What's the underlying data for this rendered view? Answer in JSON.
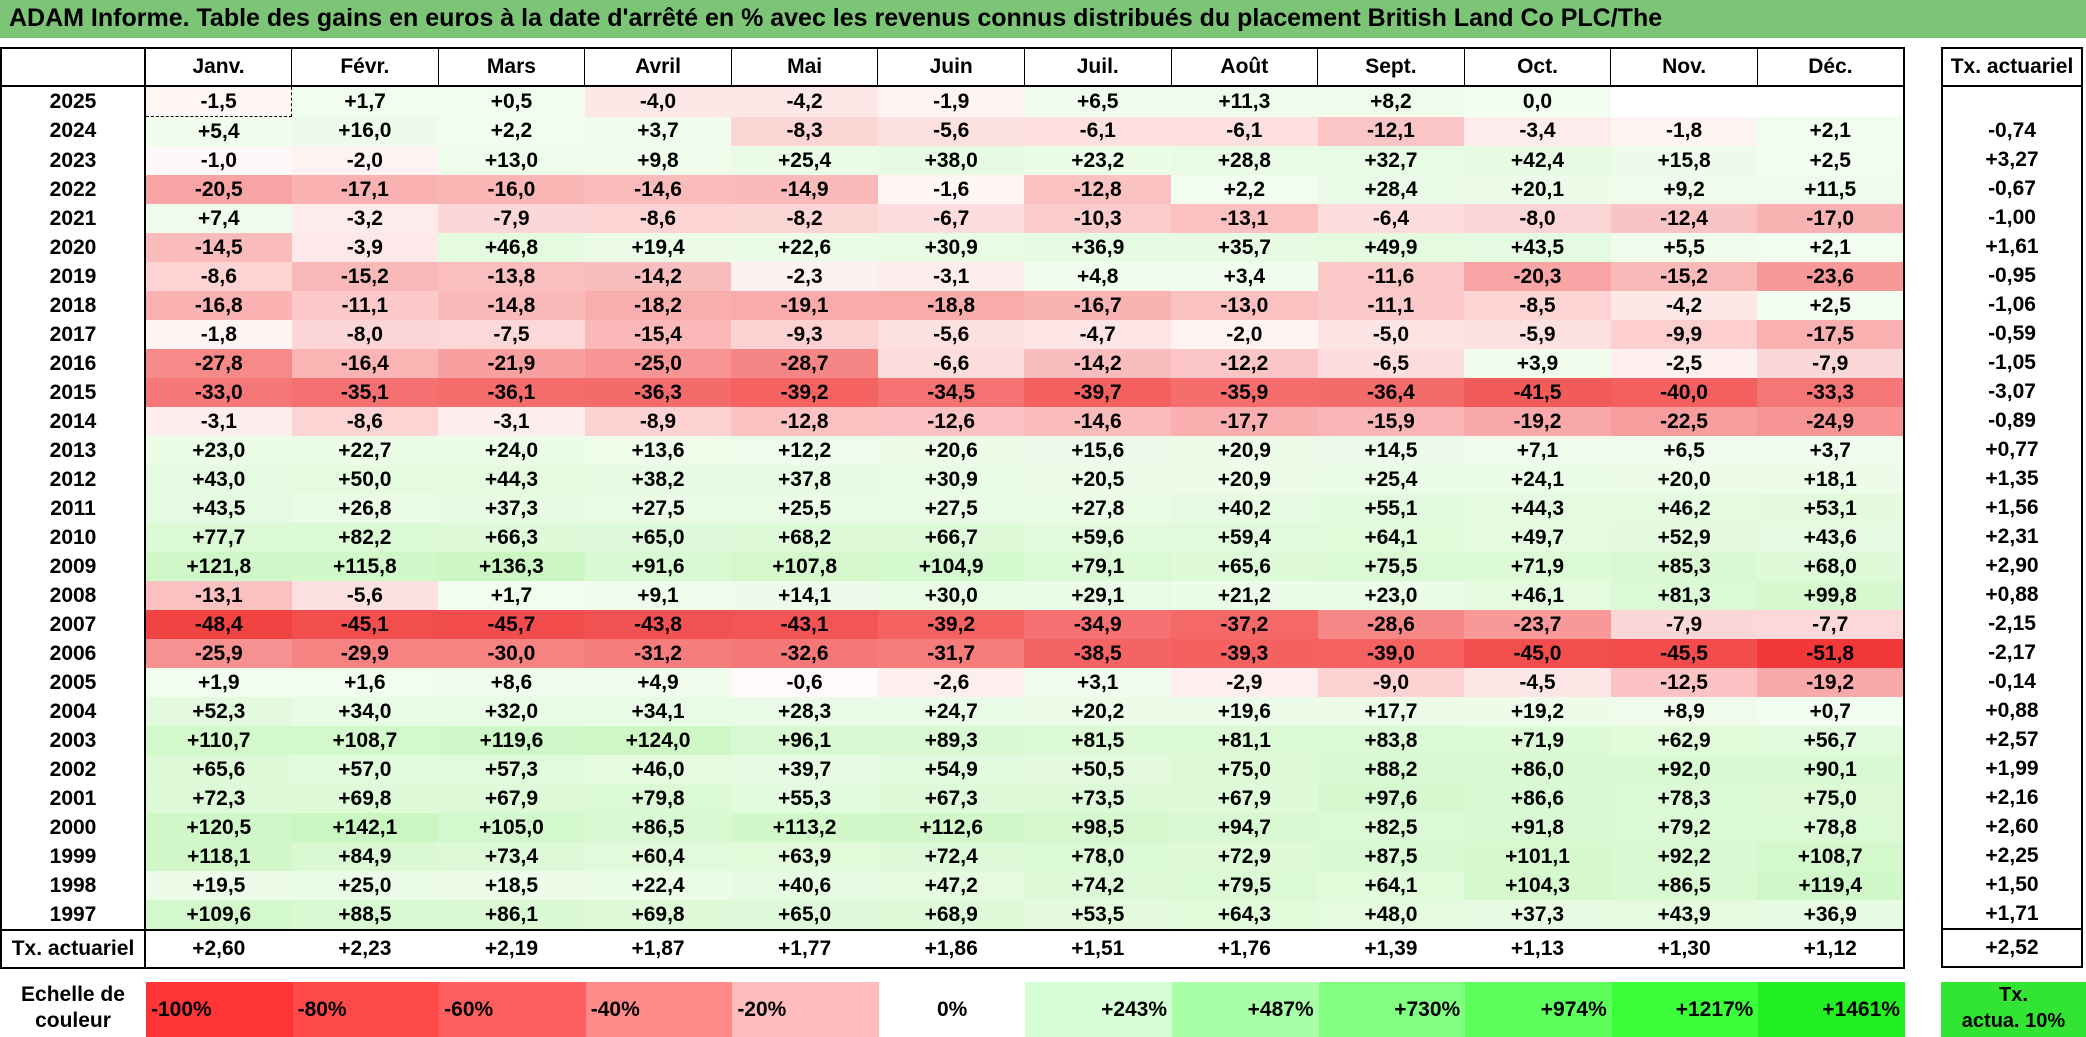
{
  "title": "ADAM Informe. Table des gains en euros à la date d'arrêté en % avec les revenus connus distribués du placement British Land Co PLC/The",
  "months": [
    "Janv.",
    "Févr.",
    "Mars",
    "Avril",
    "Mai",
    "Juin",
    "Juil.",
    "Août",
    "Sept.",
    "Oct.",
    "Nov.",
    "Déc."
  ],
  "rate_header": "Tx. actuariel",
  "rows": [
    {
      "year": "2025",
      "values": [
        "-1,5",
        "+1,7",
        "+0,5",
        "-4,0",
        "-4,2",
        "-1,9",
        "+6,5",
        "+11,3",
        "+8,2",
        "0,0",
        "",
        ""
      ],
      "rate": ""
    },
    {
      "year": "2024",
      "values": [
        "+5,4",
        "+16,0",
        "+2,2",
        "+3,7",
        "-8,3",
        "-5,6",
        "-6,1",
        "-6,1",
        "-12,1",
        "-3,4",
        "-1,8",
        "+2,1"
      ],
      "rate": "-0,74"
    },
    {
      "year": "2023",
      "values": [
        "-1,0",
        "-2,0",
        "+13,0",
        "+9,8",
        "+25,4",
        "+38,0",
        "+23,2",
        "+28,8",
        "+32,7",
        "+42,4",
        "+15,8",
        "+2,5"
      ],
      "rate": "+3,27"
    },
    {
      "year": "2022",
      "values": [
        "-20,5",
        "-17,1",
        "-16,0",
        "-14,6",
        "-14,9",
        "-1,6",
        "-12,8",
        "+2,2",
        "+28,4",
        "+20,1",
        "+9,2",
        "+11,5"
      ],
      "rate": "-0,67"
    },
    {
      "year": "2021",
      "values": [
        "+7,4",
        "-3,2",
        "-7,9",
        "-8,6",
        "-8,2",
        "-6,7",
        "-10,3",
        "-13,1",
        "-6,4",
        "-8,0",
        "-12,4",
        "-17,0"
      ],
      "rate": "-1,00"
    },
    {
      "year": "2020",
      "values": [
        "-14,5",
        "-3,9",
        "+46,8",
        "+19,4",
        "+22,6",
        "+30,9",
        "+36,9",
        "+35,7",
        "+49,9",
        "+43,5",
        "+5,5",
        "+2,1"
      ],
      "rate": "+1,61"
    },
    {
      "year": "2019",
      "values": [
        "-8,6",
        "-15,2",
        "-13,8",
        "-14,2",
        "-2,3",
        "-3,1",
        "+4,8",
        "+3,4",
        "-11,6",
        "-20,3",
        "-15,2",
        "-23,6"
      ],
      "rate": "-0,95"
    },
    {
      "year": "2018",
      "values": [
        "-16,8",
        "-11,1",
        "-14,8",
        "-18,2",
        "-19,1",
        "-18,8",
        "-16,7",
        "-13,0",
        "-11,1",
        "-8,5",
        "-4,2",
        "+2,5"
      ],
      "rate": "-1,06"
    },
    {
      "year": "2017",
      "values": [
        "-1,8",
        "-8,0",
        "-7,5",
        "-15,4",
        "-9,3",
        "-5,6",
        "-4,7",
        "-2,0",
        "-5,0",
        "-5,9",
        "-9,9",
        "-17,5"
      ],
      "rate": "-0,59"
    },
    {
      "year": "2016",
      "values": [
        "-27,8",
        "-16,4",
        "-21,9",
        "-25,0",
        "-28,7",
        "-6,6",
        "-14,2",
        "-12,2",
        "-6,5",
        "+3,9",
        "-2,5",
        "-7,9"
      ],
      "rate": "-1,05"
    },
    {
      "year": "2015",
      "values": [
        "-33,0",
        "-35,1",
        "-36,1",
        "-36,3",
        "-39,2",
        "-34,5",
        "-39,7",
        "-35,9",
        "-36,4",
        "-41,5",
        "-40,0",
        "-33,3"
      ],
      "rate": "-3,07"
    },
    {
      "year": "2014",
      "values": [
        "-3,1",
        "-8,6",
        "-3,1",
        "-8,9",
        "-12,8",
        "-12,6",
        "-14,6",
        "-17,7",
        "-15,9",
        "-19,2",
        "-22,5",
        "-24,9"
      ],
      "rate": "-0,89"
    },
    {
      "year": "2013",
      "values": [
        "+23,0",
        "+22,7",
        "+24,0",
        "+13,6",
        "+12,2",
        "+20,6",
        "+15,6",
        "+20,9",
        "+14,5",
        "+7,1",
        "+6,5",
        "+3,7"
      ],
      "rate": "+0,77"
    },
    {
      "year": "2012",
      "values": [
        "+43,0",
        "+50,0",
        "+44,3",
        "+38,2",
        "+37,8",
        "+30,9",
        "+20,5",
        "+20,9",
        "+25,4",
        "+24,1",
        "+20,0",
        "+18,1"
      ],
      "rate": "+1,35"
    },
    {
      "year": "2011",
      "values": [
        "+43,5",
        "+26,8",
        "+37,3",
        "+27,5",
        "+25,5",
        "+27,5",
        "+27,8",
        "+40,2",
        "+55,1",
        "+44,3",
        "+46,2",
        "+53,1"
      ],
      "rate": "+1,56"
    },
    {
      "year": "2010",
      "values": [
        "+77,7",
        "+82,2",
        "+66,3",
        "+65,0",
        "+68,2",
        "+66,7",
        "+59,6",
        "+59,4",
        "+64,1",
        "+49,7",
        "+52,9",
        "+43,6"
      ],
      "rate": "+2,31"
    },
    {
      "year": "2009",
      "values": [
        "+121,8",
        "+115,8",
        "+136,3",
        "+91,6",
        "+107,8",
        "+104,9",
        "+79,1",
        "+65,6",
        "+75,5",
        "+71,9",
        "+85,3",
        "+68,0"
      ],
      "rate": "+2,90"
    },
    {
      "year": "2008",
      "values": [
        "-13,1",
        "-5,6",
        "+1,7",
        "+9,1",
        "+14,1",
        "+30,0",
        "+29,1",
        "+21,2",
        "+23,0",
        "+46,1",
        "+81,3",
        "+99,8"
      ],
      "rate": "+0,88"
    },
    {
      "year": "2007",
      "values": [
        "-48,4",
        "-45,1",
        "-45,7",
        "-43,8",
        "-43,1",
        "-39,2",
        "-34,9",
        "-37,2",
        "-28,6",
        "-23,7",
        "-7,9",
        "-7,7"
      ],
      "rate": "-2,15"
    },
    {
      "year": "2006",
      "values": [
        "-25,9",
        "-29,9",
        "-30,0",
        "-31,2",
        "-32,6",
        "-31,7",
        "-38,5",
        "-39,3",
        "-39,0",
        "-45,0",
        "-45,5",
        "-51,8"
      ],
      "rate": "-2,17"
    },
    {
      "year": "2005",
      "values": [
        "+1,9",
        "+1,6",
        "+8,6",
        "+4,9",
        "-0,6",
        "-2,6",
        "+3,1",
        "-2,9",
        "-9,0",
        "-4,5",
        "-12,5",
        "-19,2"
      ],
      "rate": "-0,14"
    },
    {
      "year": "2004",
      "values": [
        "+52,3",
        "+34,0",
        "+32,0",
        "+34,1",
        "+28,3",
        "+24,7",
        "+20,2",
        "+19,6",
        "+17,7",
        "+19,2",
        "+8,9",
        "+0,7"
      ],
      "rate": "+0,88"
    },
    {
      "year": "2003",
      "values": [
        "+110,7",
        "+108,7",
        "+119,6",
        "+124,0",
        "+96,1",
        "+89,3",
        "+81,5",
        "+81,1",
        "+83,8",
        "+71,9",
        "+62,9",
        "+56,7"
      ],
      "rate": "+2,57"
    },
    {
      "year": "2002",
      "values": [
        "+65,6",
        "+57,0",
        "+57,3",
        "+46,0",
        "+39,7",
        "+54,9",
        "+50,5",
        "+75,0",
        "+88,2",
        "+86,0",
        "+92,0",
        "+90,1"
      ],
      "rate": "+1,99"
    },
    {
      "year": "2001",
      "values": [
        "+72,3",
        "+69,8",
        "+67,9",
        "+79,8",
        "+55,3",
        "+67,3",
        "+73,5",
        "+67,9",
        "+97,6",
        "+86,6",
        "+78,3",
        "+75,0"
      ],
      "rate": "+2,16"
    },
    {
      "year": "2000",
      "values": [
        "+120,5",
        "+142,1",
        "+105,0",
        "+86,5",
        "+113,2",
        "+112,6",
        "+98,5",
        "+94,7",
        "+82,5",
        "+91,8",
        "+79,2",
        "+78,8"
      ],
      "rate": "+2,60"
    },
    {
      "year": "1999",
      "values": [
        "+118,1",
        "+84,9",
        "+73,4",
        "+60,4",
        "+63,9",
        "+72,4",
        "+78,0",
        "+72,9",
        "+87,5",
        "+101,1",
        "+92,2",
        "+108,7"
      ],
      "rate": "+2,25"
    },
    {
      "year": "1998",
      "values": [
        "+19,5",
        "+25,0",
        "+18,5",
        "+22,4",
        "+40,6",
        "+47,2",
        "+74,2",
        "+79,5",
        "+64,1",
        "+104,3",
        "+86,5",
        "+119,4"
      ],
      "rate": "+1,50"
    },
    {
      "year": "1997",
      "values": [
        "+109,6",
        "+88,5",
        "+86,1",
        "+69,8",
        "+65,0",
        "+68,9",
        "+53,5",
        "+64,3",
        "+48,0",
        "+37,3",
        "+43,9",
        "+36,9"
      ],
      "rate": "+1,71"
    }
  ],
  "footer": {
    "label": "Tx. actuariel",
    "values": [
      "+2,60",
      "+2,23",
      "+2,19",
      "+1,87",
      "+1,77",
      "+1,86",
      "+1,51",
      "+1,76",
      "+1,39",
      "+1,13",
      "+1,30",
      "+1,12"
    ],
    "rate": "+2,52"
  },
  "scale": {
    "label_line1": "Echelle de",
    "label_line2": "couleur",
    "items": [
      {
        "label": "-100%",
        "color": "#ff3535",
        "align": "left"
      },
      {
        "label": "-80%",
        "color": "#ff4a4a",
        "align": "left"
      },
      {
        "label": "-60%",
        "color": "#ff5e5e",
        "align": "left"
      },
      {
        "label": "-40%",
        "color": "#ff8a8a",
        "align": "left"
      },
      {
        "label": "-20%",
        "color": "#ffbcbc",
        "align": "left"
      },
      {
        "label": "0%",
        "color": "#ffffff",
        "align": "center"
      },
      {
        "label": "+243%",
        "color": "#d7ffd7",
        "align": "right"
      },
      {
        "label": "+487%",
        "color": "#a8ffa8",
        "align": "right"
      },
      {
        "label": "+730%",
        "color": "#80ff80",
        "align": "right"
      },
      {
        "label": "+974%",
        "color": "#5cff5c",
        "align": "right"
      },
      {
        "label": "+1217%",
        "color": "#3cff3c",
        "align": "right"
      },
      {
        "label": "+1461%",
        "color": "#22f022",
        "align": "right"
      }
    ],
    "rate_line1": "Tx.",
    "rate_line2": "actua. 10%"
  }
}
